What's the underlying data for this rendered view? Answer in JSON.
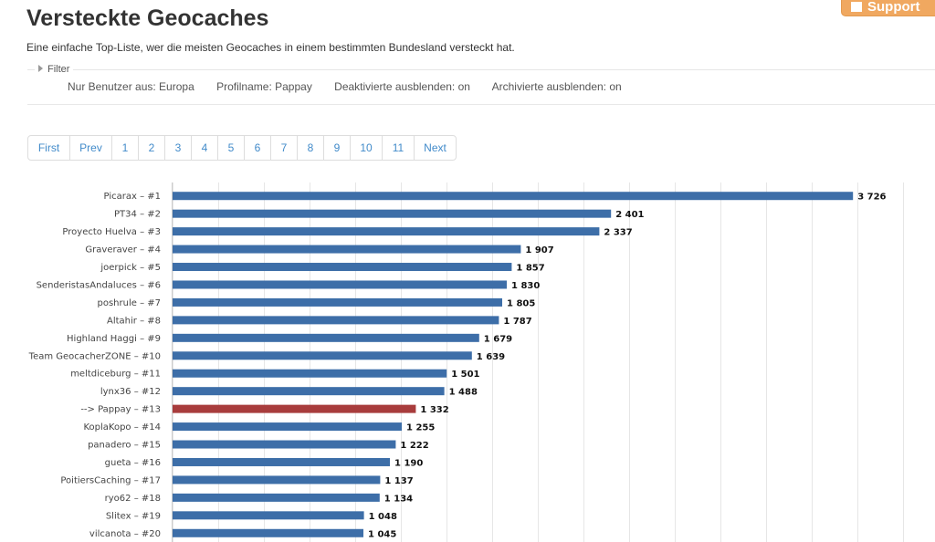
{
  "header": {
    "title": "Versteckte Geocaches",
    "subtitle": "Eine einfache Top-Liste, wer die meisten Geocaches in einem bestimmten Bundesland versteckt hat.",
    "support_label": "Support"
  },
  "filter": {
    "legend": "Filter",
    "items": [
      "Nur Benutzer aus: Europa",
      "Profilname: Pappay",
      "Deaktivierte ausblenden: on",
      "Archivierte ausblenden: on"
    ]
  },
  "pagination": [
    "First",
    "Prev",
    "1",
    "2",
    "3",
    "4",
    "5",
    "6",
    "7",
    "8",
    "9",
    "10",
    "11",
    "Next"
  ],
  "colors": {
    "bar": "#3d6ea8",
    "highlight": "#a83c3c",
    "link": "#428bca"
  },
  "chart_data": {
    "type": "bar",
    "orientation": "horizontal",
    "categories": [
      "Picarax – #1",
      "PT34 – #2",
      "Proyecto Huelva – #3",
      "Graveraver – #4",
      "joerpick – #5",
      "SenderistasAndaluces – #6",
      "poshrule – #7",
      "Altahir – #8",
      "Highland Haggi – #9",
      "Team GeocacherZONE – #10",
      "meltdiceburg – #11",
      "lynx36 – #12",
      "--> Pappay – #13",
      "KoplaKopo – #14",
      "panadero – #15",
      "gueta – #16",
      "PoitiersCaching – #17",
      "ryo62 – #18",
      "Slitex – #19",
      "vilcanota – #20"
    ],
    "values": [
      3726,
      2401,
      2337,
      1907,
      1857,
      1830,
      1805,
      1787,
      1679,
      1639,
      1501,
      1488,
      1332,
      1255,
      1222,
      1190,
      1137,
      1134,
      1048,
      1045
    ],
    "value_labels": [
      "3 726",
      "2 401",
      "2 337",
      "1 907",
      "1 857",
      "1 830",
      "1 805",
      "1 787",
      "1 679",
      "1 639",
      "1 501",
      "1 488",
      "1 332",
      "1 255",
      "1 222",
      "1 190",
      "1 137",
      "1 134",
      "1 048",
      "1 045"
    ],
    "highlight_category": "--> Pappay – #13",
    "xlim": [
      0,
      4000
    ],
    "grid": true,
    "legend": "none"
  }
}
